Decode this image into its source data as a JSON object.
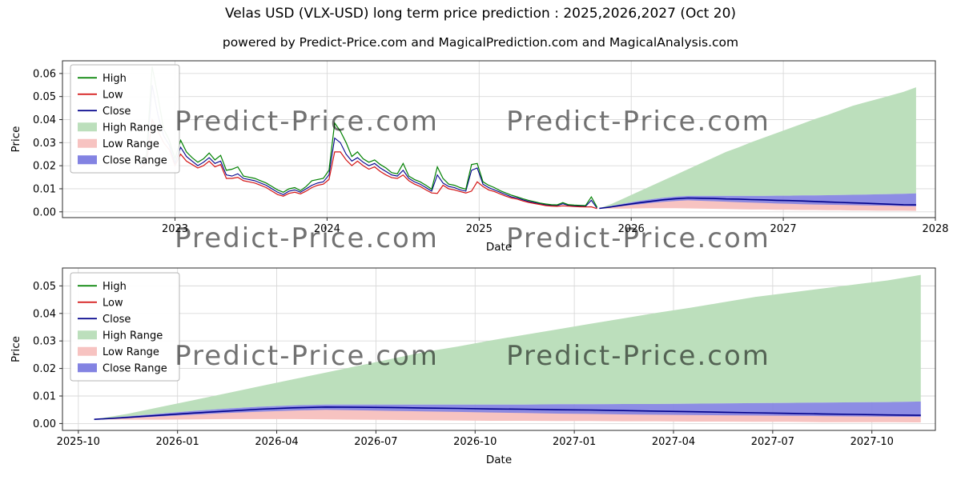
{
  "header": {
    "title": "Velas USD (VLX-USD) long term price prediction : 2025,2026,2027 (Oct 20)",
    "subtitle": "powered by Predict-Price.com and MagicalPrediction.com and MagicalAnalysis.com"
  },
  "watermark": {
    "text": "Predict-Price.com"
  },
  "colors": {
    "high_line": "#008000",
    "low_line": "#d41414",
    "close_line": "#00008b",
    "high_range_fill": "#bcdfbc",
    "low_range_fill": "#f7c3c1",
    "close_range_fill": "#8383e2",
    "grid": "#d9d9d9",
    "spine": "#2b2b2b",
    "watermark": "#c9c9c9"
  },
  "legend_items": [
    {
      "label": "High",
      "type": "line",
      "color_key": "high_line"
    },
    {
      "label": "Low",
      "type": "line",
      "color_key": "low_line"
    },
    {
      "label": "Close",
      "type": "line",
      "color_key": "close_line"
    },
    {
      "label": "High Range",
      "type": "patch",
      "color_key": "high_range_fill"
    },
    {
      "label": "Low Range",
      "type": "patch",
      "color_key": "low_range_fill"
    },
    {
      "label": "Close Range",
      "type": "patch",
      "color_key": "close_range_fill"
    }
  ],
  "chart_data": {
    "type": "line",
    "title": "Velas USD (VLX-USD) long term price prediction : 2025,2026,2027 (Oct 20)",
    "history": {
      "x": [
        2022.775,
        2022.8125,
        2022.85,
        2022.8875,
        2022.925,
        2022.9625,
        2023,
        2023.0375,
        2023.075,
        2023.1125,
        2023.15,
        2023.1875,
        2023.225,
        2023.2625,
        2023.3,
        2023.3375,
        2023.375,
        2023.4125,
        2023.45,
        2023.4875,
        2023.525,
        2023.5625,
        2023.6,
        2023.6375,
        2023.675,
        2023.7125,
        2023.75,
        2023.7875,
        2023.825,
        2023.8625,
        2023.9,
        2023.9375,
        2023.975,
        2024.0125,
        2024.05,
        2024.0875,
        2024.125,
        2024.1625,
        2024.2,
        2024.2375,
        2024.275,
        2024.3125,
        2024.35,
        2024.3875,
        2024.425,
        2024.4625,
        2024.5,
        2024.5375,
        2024.575,
        2024.6125,
        2024.65,
        2024.6875,
        2024.725,
        2024.7625,
        2024.8,
        2024.8375,
        2024.875,
        2024.9125,
        2024.95,
        2024.9875,
        2025.025,
        2025.0625,
        2025.1,
        2025.1375,
        2025.175,
        2025.2125,
        2025.25,
        2025.2875,
        2025.325,
        2025.3625,
        2025.4,
        2025.4375,
        2025.475,
        2025.5125,
        2025.55,
        2025.5875,
        2025.625,
        2025.6625,
        2025.7,
        2025.7375,
        2025.775
      ],
      "high": [
        0.022,
        0.0245,
        0.063,
        0.05,
        0.036,
        0.031,
        0.023,
        0.031,
        0.026,
        0.0235,
        0.0215,
        0.023,
        0.0255,
        0.0225,
        0.0245,
        0.018,
        0.0185,
        0.0195,
        0.0155,
        0.015,
        0.0145,
        0.0135,
        0.0125,
        0.011,
        0.0095,
        0.0085,
        0.01,
        0.0105,
        0.0092,
        0.011,
        0.0135,
        0.014,
        0.0145,
        0.018,
        0.0385,
        0.035,
        0.03,
        0.024,
        0.026,
        0.023,
        0.0215,
        0.0225,
        0.0205,
        0.019,
        0.017,
        0.0165,
        0.021,
        0.0155,
        0.014,
        0.013,
        0.0115,
        0.0098,
        0.0195,
        0.0145,
        0.012,
        0.0115,
        0.0105,
        0.0098,
        0.0205,
        0.021,
        0.013,
        0.0115,
        0.0105,
        0.0092,
        0.0082,
        0.0072,
        0.0065,
        0.0057,
        0.005,
        0.0044,
        0.0038,
        0.0034,
        0.0031,
        0.003,
        0.004,
        0.0031,
        0.0029,
        0.0028,
        0.0027,
        0.0065,
        0.002
      ],
      "low": [
        0.019,
        0.021,
        0.04,
        0.035,
        0.03,
        0.027,
        0.02,
        0.025,
        0.022,
        0.0205,
        0.019,
        0.02,
        0.022,
        0.0195,
        0.0205,
        0.0145,
        0.0145,
        0.015,
        0.0135,
        0.013,
        0.0125,
        0.0115,
        0.0105,
        0.009,
        0.0075,
        0.0068,
        0.008,
        0.0085,
        0.0078,
        0.009,
        0.0105,
        0.0115,
        0.012,
        0.014,
        0.026,
        0.026,
        0.0225,
        0.02,
        0.022,
        0.02,
        0.0185,
        0.0195,
        0.0175,
        0.016,
        0.0148,
        0.0145,
        0.016,
        0.0135,
        0.012,
        0.011,
        0.0095,
        0.0082,
        0.008,
        0.0115,
        0.01,
        0.0095,
        0.0088,
        0.0082,
        0.009,
        0.013,
        0.011,
        0.0095,
        0.0088,
        0.0078,
        0.0068,
        0.006,
        0.0055,
        0.0047,
        0.0041,
        0.0036,
        0.0032,
        0.0027,
        0.0025,
        0.0024,
        0.0026,
        0.0025,
        0.0023,
        0.0022,
        0.0021,
        0.0022,
        0.0014
      ],
      "close": [
        0.0205,
        0.0225,
        0.055,
        0.042,
        0.033,
        0.029,
        0.021,
        0.028,
        0.024,
        0.022,
        0.02,
        0.0215,
        0.0235,
        0.021,
        0.022,
        0.016,
        0.0155,
        0.0165,
        0.0145,
        0.014,
        0.0135,
        0.0125,
        0.0115,
        0.01,
        0.0085,
        0.0075,
        0.009,
        0.0095,
        0.0085,
        0.01,
        0.0115,
        0.0125,
        0.013,
        0.016,
        0.032,
        0.03,
        0.025,
        0.022,
        0.0235,
        0.0215,
        0.02,
        0.021,
        0.019,
        0.0175,
        0.016,
        0.0155,
        0.018,
        0.0145,
        0.013,
        0.012,
        0.0105,
        0.009,
        0.016,
        0.0125,
        0.011,
        0.0105,
        0.0095,
        0.009,
        0.018,
        0.019,
        0.012,
        0.0105,
        0.0095,
        0.0085,
        0.0075,
        0.0065,
        0.006,
        0.0052,
        0.0045,
        0.004,
        0.0035,
        0.003,
        0.0028,
        0.0027,
        0.0035,
        0.0028,
        0.0026,
        0.0025,
        0.0024,
        0.005,
        0.0016
      ]
    },
    "forecast": {
      "x": [
        2025.79,
        2025.8733,
        2025.9567,
        2026.04,
        2026.1233,
        2026.2067,
        2026.29,
        2026.3733,
        2026.4567,
        2026.54,
        2026.6233,
        2026.7067,
        2026.79,
        2026.8733,
        2026.9567,
        2027.04,
        2027.1233,
        2027.2067,
        2027.29,
        2027.3733,
        2027.4567,
        2027.54,
        2027.6233,
        2027.7067,
        2027.79,
        2027.8733
      ],
      "close": [
        0.0015,
        0.0022,
        0.003,
        0.0038,
        0.0045,
        0.0052,
        0.0057,
        0.006,
        0.0059,
        0.0058,
        0.0056,
        0.0055,
        0.0053,
        0.0052,
        0.005,
        0.0049,
        0.0047,
        0.0045,
        0.0043,
        0.0041,
        0.0039,
        0.0037,
        0.0035,
        0.0033,
        0.0031,
        0.003
      ],
      "high_range_top": [
        0.0015,
        0.0035,
        0.006,
        0.0085,
        0.011,
        0.0135,
        0.016,
        0.0185,
        0.021,
        0.0235,
        0.026,
        0.028,
        0.0302,
        0.0322,
        0.0342,
        0.0362,
        0.0382,
        0.0402,
        0.042,
        0.044,
        0.046,
        0.0475,
        0.049,
        0.0505,
        0.052,
        0.054
      ],
      "high_range_bottom": [
        0.0015,
        0.0026,
        0.0036,
        0.0046,
        0.0054,
        0.0061,
        0.0066,
        0.0069,
        0.0069,
        0.0069,
        0.0069,
        0.0069,
        0.0069,
        0.0069,
        0.007,
        0.007,
        0.0071,
        0.0071,
        0.0072,
        0.0073,
        0.0074,
        0.0075,
        0.0076,
        0.0077,
        0.0078,
        0.008
      ],
      "low_range_top": [
        0.0015,
        0.0021,
        0.0028,
        0.0035,
        0.0041,
        0.0046,
        0.005,
        0.0052,
        0.0051,
        0.005,
        0.0049,
        0.0048,
        0.0047,
        0.0046,
        0.0045,
        0.0044,
        0.0043,
        0.0042,
        0.0041,
        0.004,
        0.0039,
        0.0038,
        0.0037,
        0.0036,
        0.0035,
        0.0034
      ],
      "low_range_bottom": [
        0.0015,
        0.0014,
        0.0014,
        0.0015,
        0.0016,
        0.0016,
        0.0016,
        0.0015,
        0.0014,
        0.0013,
        0.0012,
        0.0011,
        0.001,
        0.001,
        0.0009,
        0.0009,
        0.0008,
        0.0008,
        0.0007,
        0.0007,
        0.0006,
        0.0006,
        0.0005,
        0.0005,
        0.0005,
        0.0004
      ],
      "close_range_top": [
        0.0015,
        0.0026,
        0.0036,
        0.0046,
        0.0054,
        0.0061,
        0.0066,
        0.0069,
        0.0069,
        0.0069,
        0.0069,
        0.0069,
        0.0069,
        0.0069,
        0.007,
        0.007,
        0.0071,
        0.0071,
        0.0072,
        0.0073,
        0.0074,
        0.0075,
        0.0076,
        0.0077,
        0.0078,
        0.008
      ],
      "close_range_bottom": [
        0.0015,
        0.002,
        0.0026,
        0.0032,
        0.0038,
        0.0043,
        0.0047,
        0.005,
        0.0048,
        0.0046,
        0.0044,
        0.0042,
        0.004,
        0.0038,
        0.0036,
        0.0035,
        0.0033,
        0.0032,
        0.0031,
        0.003,
        0.0029,
        0.0028,
        0.0027,
        0.0026,
        0.0025,
        0.0024
      ]
    },
    "charts": [
      {
        "name": "full-history",
        "xlabel": "Date",
        "ylabel": "Price",
        "xlim": [
          2022.26,
          2028.0
        ],
        "ylim": [
          -0.0025,
          0.0655
        ],
        "x_tick_values": [
          2023,
          2024,
          2025,
          2026,
          2027,
          2028
        ],
        "x_tick_labels": [
          "2023",
          "2024",
          "2025",
          "2026",
          "2027",
          "2028"
        ],
        "y_tick_values": [
          0,
          0.01,
          0.02,
          0.03,
          0.04,
          0.05,
          0.06
        ],
        "y_tick_labels": [
          "0.00",
          "0.01",
          "0.02",
          "0.03",
          "0.04",
          "0.05",
          "0.06"
        ],
        "show_history": true
      },
      {
        "name": "forecast-zoom",
        "xlabel": "Date",
        "ylabel": "Price",
        "xlim": [
          2025.71,
          2027.91
        ],
        "ylim": [
          -0.0025,
          0.0565
        ],
        "x_tick_values": [
          2025.75,
          2026.0,
          2026.25,
          2026.5,
          2026.75,
          2027.0,
          2027.25,
          2027.5,
          2027.75
        ],
        "x_tick_labels": [
          "2025-10",
          "2026-01",
          "2026-04",
          "2026-07",
          "2026-10",
          "2027-01",
          "2027-04",
          "2027-07",
          "2027-10"
        ],
        "y_tick_values": [
          0,
          0.01,
          0.02,
          0.03,
          0.04,
          0.05
        ],
        "y_tick_labels": [
          "0.00",
          "0.01",
          "0.02",
          "0.03",
          "0.04",
          "0.05"
        ],
        "show_history": false
      }
    ]
  }
}
